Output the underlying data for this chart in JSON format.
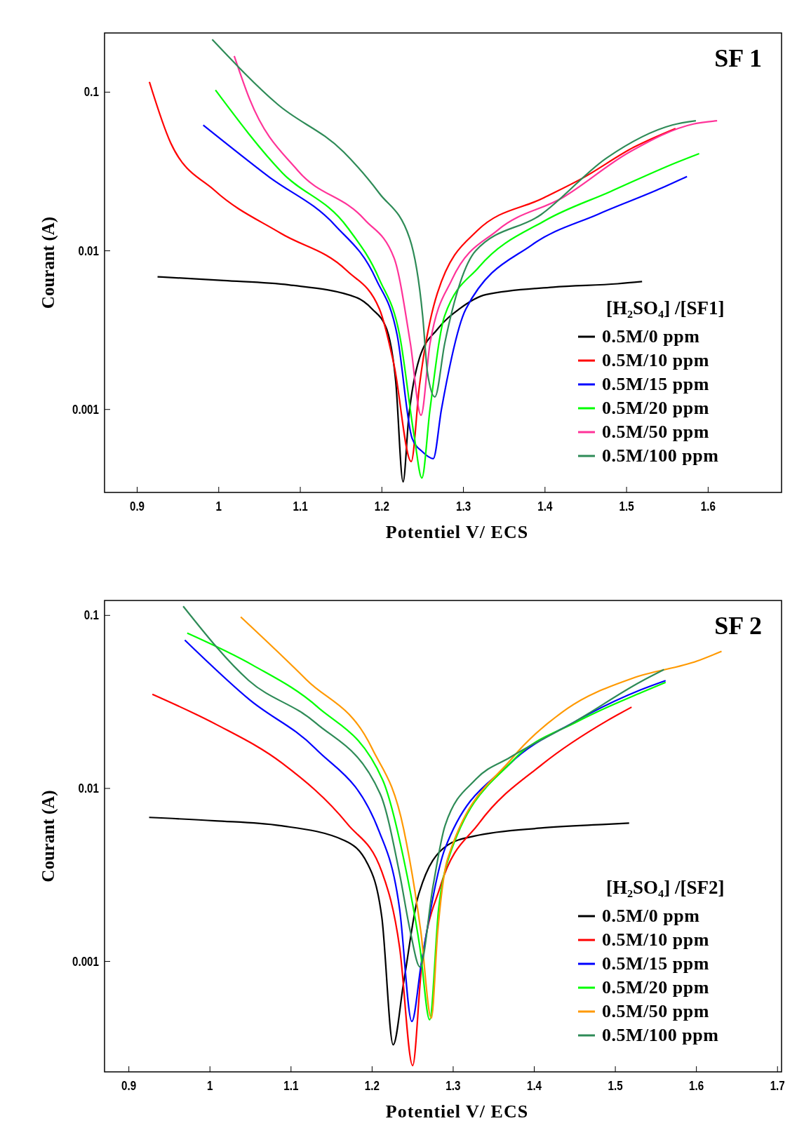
{
  "chart_data": [
    {
      "type": "line",
      "title": "SF 1",
      "xlabel": "Potentiel V/ ECS",
      "ylabel": "Courant (A)",
      "legend_title": "[H₂SO₄] /[SF1]",
      "log": "y",
      "xlim": [
        0.86,
        1.69
      ],
      "ylim": [
        0.0003,
        0.236
      ],
      "xticks": [
        0.9,
        1,
        1.1,
        1.2,
        1.3,
        1.4,
        1.5,
        1.6
      ],
      "yticks": [
        0.001,
        0.01,
        0.1
      ],
      "grid": false,
      "legend": "bottom right",
      "line_style": "solid",
      "series": [
        {
          "name": "0.5M/0 ppm",
          "color": "#000000",
          "x": [
            0.925,
            1.006,
            1.086,
            1.168,
            1.188,
            1.206,
            1.217,
            1.226,
            1.233,
            1.246,
            1.268,
            1.295,
            1.328,
            1.41,
            1.489,
            1.519
          ],
          "values": [
            0.00686,
            0.0065,
            0.0061,
            0.0051,
            0.0043,
            0.0032,
            0.0015,
            0.00035,
            0.0009,
            0.0021,
            0.0032,
            0.0043,
            0.0053,
            0.0059,
            0.0062,
            0.0064
          ]
        },
        {
          "name": "0.5M/10 ppm",
          "color": "#ff0000",
          "x": [
            0.915,
            0.941,
            0.995,
            1.076,
            1.157,
            1.197,
            1.215,
            1.236,
            1.246,
            1.268,
            1.317,
            1.398,
            1.445,
            1.509,
            1.56
          ],
          "values": [
            0.116,
            0.048,
            0.024,
            0.0129,
            0.0075,
            0.0043,
            0.0019,
            0.00047,
            0.0014,
            0.0054,
            0.0134,
            0.0215,
            0.0285,
            0.045,
            0.059
          ]
        },
        {
          "name": "0.5M/15 ppm",
          "color": "#0000ff",
          "x": [
            0.981,
            1.061,
            1.143,
            1.193,
            1.219,
            1.237,
            1.25,
            1.263,
            1.273,
            1.303,
            1.384,
            1.465,
            1.544,
            1.574
          ],
          "values": [
            0.062,
            0.0294,
            0.0144,
            0.0066,
            0.0029,
            0.00066,
            0.00054,
            0.00049,
            0.001,
            0.0043,
            0.0109,
            0.017,
            0.025,
            0.0294
          ]
        },
        {
          "name": "0.5M/20 ppm",
          "color": "#00ff00",
          "x": [
            0.996,
            1.078,
            1.158,
            1.197,
            1.222,
            1.24,
            1.249,
            1.259,
            1.277,
            1.319,
            1.4,
            1.48,
            1.561,
            1.589
          ],
          "values": [
            0.103,
            0.031,
            0.014,
            0.0066,
            0.0029,
            0.00066,
            0.00037,
            0.001,
            0.0039,
            0.0079,
            0.0155,
            0.0236,
            0.036,
            0.041
          ]
        },
        {
          "name": "0.5M/50 ppm",
          "color": "#ff3399",
          "x": [
            1.019,
            1.038,
            1.097,
            1.179,
            1.215,
            1.235,
            1.248,
            1.259,
            1.286,
            1.342,
            1.422,
            1.504,
            1.582,
            1.611
          ],
          "values": [
            0.169,
            0.09,
            0.032,
            0.0157,
            0.009,
            0.0026,
            0.00092,
            0.0026,
            0.0066,
            0.0135,
            0.0217,
            0.042,
            0.063,
            0.066
          ]
        },
        {
          "name": "0.5M/100 ppm",
          "color": "#2e8b57",
          "x": [
            0.992,
            1.072,
            1.153,
            1.197,
            1.234,
            1.25,
            1.256,
            1.265,
            1.277,
            1.315,
            1.395,
            1.476,
            1.556,
            1.585
          ],
          "values": [
            0.215,
            0.084,
            0.042,
            0.023,
            0.012,
            0.0039,
            0.0017,
            0.0012,
            0.0026,
            0.01,
            0.0169,
            0.0386,
            0.062,
            0.066
          ]
        }
      ]
    },
    {
      "type": "line",
      "title": "SF 2",
      "xlabel": "Potentiel V/ ECS",
      "ylabel": "Courant (A)",
      "legend_title": "[H₂SO₄] /[SF2]",
      "log": "y",
      "xlim": [
        0.87,
        1.705
      ],
      "ylim": [
        0.00023,
        0.122
      ],
      "xticks": [
        0.9,
        1,
        1.1,
        1.2,
        1.3,
        1.4,
        1.5,
        1.6,
        1.7
      ],
      "yticks": [
        0.001,
        0.01,
        0.1
      ],
      "grid": false,
      "legend": "bottom right",
      "line_style": "solid",
      "series": [
        {
          "name": "0.5M/0 ppm",
          "color": "#000000",
          "x": [
            0.925,
            1.006,
            1.086,
            1.166,
            1.194,
            1.212,
            1.226,
            1.239,
            1.257,
            1.293,
            1.326,
            1.408,
            1.488,
            1.517
          ],
          "values": [
            0.0068,
            0.0065,
            0.0061,
            0.005,
            0.0037,
            0.0018,
            0.00033,
            0.00076,
            0.0024,
            0.0047,
            0.0053,
            0.0059,
            0.0062,
            0.0063
          ]
        },
        {
          "name": "0.5M/10 ppm",
          "color": "#ff0000",
          "x": [
            0.929,
            1.008,
            1.089,
            1.17,
            1.212,
            1.234,
            1.25,
            1.261,
            1.284,
            1.332,
            1.41,
            1.491,
            1.52
          ],
          "values": [
            0.035,
            0.0234,
            0.014,
            0.0062,
            0.0033,
            0.0012,
            0.00025,
            0.00093,
            0.0027,
            0.0063,
            0.0138,
            0.0248,
            0.0295
          ]
        },
        {
          "name": "0.5M/15 ppm",
          "color": "#0000ff",
          "x": [
            0.969,
            1.049,
            1.13,
            1.209,
            1.234,
            1.249,
            1.261,
            1.29,
            1.37,
            1.45,
            1.531,
            1.562
          ],
          "values": [
            0.072,
            0.0325,
            0.017,
            0.0056,
            0.002,
            0.00045,
            0.001,
            0.0045,
            0.0139,
            0.0243,
            0.0371,
            0.042
          ]
        },
        {
          "name": "0.5M/20 ppm",
          "color": "#00ff00",
          "x": [
            0.972,
            1.053,
            1.133,
            1.213,
            1.239,
            1.259,
            1.271,
            1.282,
            1.294,
            1.373,
            1.453,
            1.532,
            1.562
          ],
          "values": [
            0.079,
            0.0515,
            0.0295,
            0.0112,
            0.0039,
            0.0012,
            0.00046,
            0.002,
            0.0039,
            0.0144,
            0.0243,
            0.0358,
            0.041
          ]
        },
        {
          "name": "0.5M/50 ppm",
          "color": "#ff9900",
          "x": [
            1.038,
            1.119,
            1.2,
            1.239,
            1.26,
            1.273,
            1.281,
            1.293,
            1.373,
            1.441,
            1.521,
            1.601,
            1.631
          ],
          "values": [
            0.098,
            0.0425,
            0.017,
            0.0058,
            0.0015,
            0.00047,
            0.0015,
            0.0039,
            0.015,
            0.029,
            0.0433,
            0.0545,
            0.062
          ]
        },
        {
          "name": "0.5M/100 ppm",
          "color": "#2e8b57",
          "x": [
            0.967,
            1.048,
            1.13,
            1.21,
            1.234,
            1.247,
            1.259,
            1.275,
            1.29,
            1.328,
            1.37,
            1.45,
            1.531,
            1.56
          ],
          "values": [
            0.113,
            0.042,
            0.024,
            0.0093,
            0.0032,
            0.0015,
            0.00093,
            0.0027,
            0.0061,
            0.0113,
            0.0151,
            0.0243,
            0.0413,
            0.0486
          ]
        }
      ]
    }
  ]
}
